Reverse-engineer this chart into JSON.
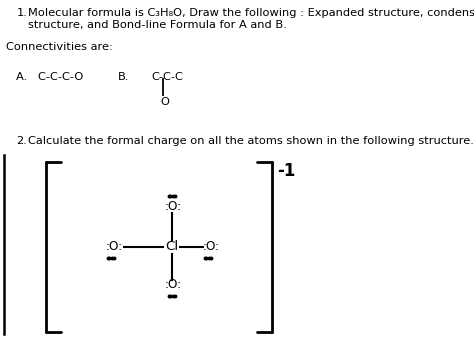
{
  "bg_color": "#ffffff",
  "text_color": "#000000",
  "line1": "Molecular formula is C₃H₈O, Draw the following : Expanded structure, condensed",
  "line2": "structure, and Bond-line Formula for A and B.",
  "connectivities": "Connectivities are:",
  "A_text": "A.   C-C-C-O",
  "B_text": "B.",
  "B_ccc": "C-C-C",
  "B_o": "O",
  "q2_text": "Calculate the formal charge on all the atoms shown in the following structure.",
  "charge": "-1",
  "Cl_text": "Cl",
  "O_text": ":O:",
  "O_bottom_text": ":O:"
}
